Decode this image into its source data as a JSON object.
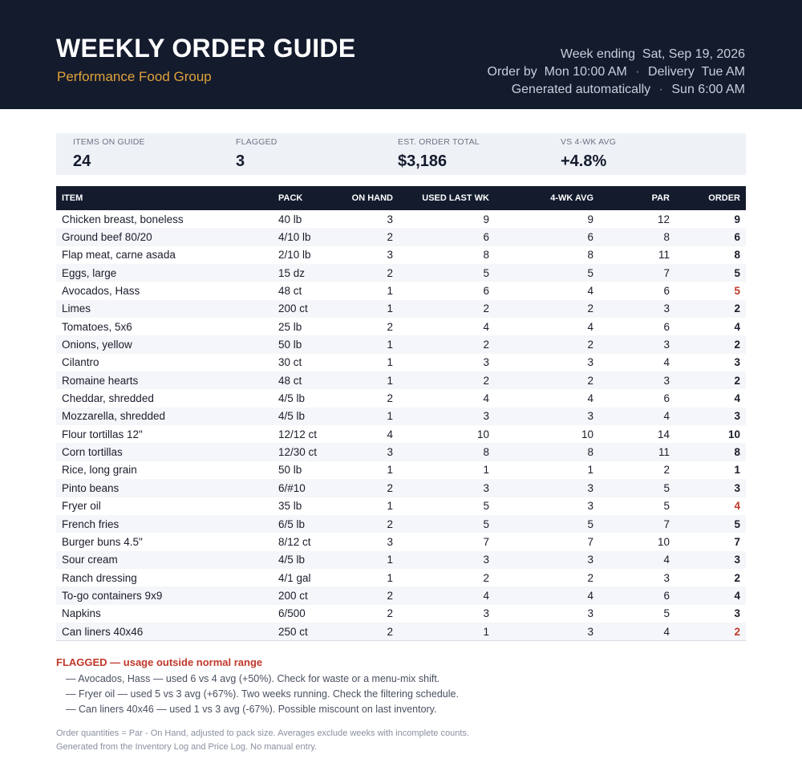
{
  "header": {
    "title": "WEEKLY ORDER GUIDE",
    "vendor": "Performance Food Group",
    "week_ending_label": "Week ending",
    "week_ending": "Sat, Sep 19, 2026",
    "order_by_label": "Order by",
    "order_by": "Mon 10:00 AM",
    "delivery_label": "Delivery",
    "delivery": "Tue AM",
    "generated_label": "Generated automatically",
    "generated": "Sun 6:00 AM"
  },
  "stats": [
    {
      "label": "ITEMS ON GUIDE",
      "value": "24"
    },
    {
      "label": "FLAGGED",
      "value": "3"
    },
    {
      "label": "EST. ORDER TOTAL",
      "value": "$3,186"
    },
    {
      "label": "VS 4-WK AVG",
      "value": "+4.8%"
    }
  ],
  "table": {
    "columns": [
      "ITEM",
      "PACK",
      "ON HAND",
      "USED LAST WK",
      "4-WK AVG",
      "PAR",
      "ORDER"
    ],
    "rows": [
      {
        "item": "Chicken breast, boneless",
        "pack": "40 lb",
        "on_hand": "3",
        "used": "9",
        "avg": "9",
        "par": "12",
        "order": "9",
        "flag": false
      },
      {
        "item": "Ground beef 80/20",
        "pack": "4/10 lb",
        "on_hand": "2",
        "used": "6",
        "avg": "6",
        "par": "8",
        "order": "6",
        "flag": false
      },
      {
        "item": "Flap meat, carne asada",
        "pack": "2/10 lb",
        "on_hand": "3",
        "used": "8",
        "avg": "8",
        "par": "11",
        "order": "8",
        "flag": false
      },
      {
        "item": "Eggs, large",
        "pack": "15 dz",
        "on_hand": "2",
        "used": "5",
        "avg": "5",
        "par": "7",
        "order": "5",
        "flag": false
      },
      {
        "item": "Avocados, Hass",
        "pack": "48 ct",
        "on_hand": "1",
        "used": "6",
        "avg": "4",
        "par": "6",
        "order": "5",
        "flag": true
      },
      {
        "item": "Limes",
        "pack": "200 ct",
        "on_hand": "1",
        "used": "2",
        "avg": "2",
        "par": "3",
        "order": "2",
        "flag": false
      },
      {
        "item": "Tomatoes, 5x6",
        "pack": "25 lb",
        "on_hand": "2",
        "used": "4",
        "avg": "4",
        "par": "6",
        "order": "4",
        "flag": false
      },
      {
        "item": "Onions, yellow",
        "pack": "50 lb",
        "on_hand": "1",
        "used": "2",
        "avg": "2",
        "par": "3",
        "order": "2",
        "flag": false
      },
      {
        "item": "Cilantro",
        "pack": "30 ct",
        "on_hand": "1",
        "used": "3",
        "avg": "3",
        "par": "4",
        "order": "3",
        "flag": false
      },
      {
        "item": "Romaine hearts",
        "pack": "48 ct",
        "on_hand": "1",
        "used": "2",
        "avg": "2",
        "par": "3",
        "order": "2",
        "flag": false
      },
      {
        "item": "Cheddar, shredded",
        "pack": "4/5 lb",
        "on_hand": "2",
        "used": "4",
        "avg": "4",
        "par": "6",
        "order": "4",
        "flag": false
      },
      {
        "item": "Mozzarella, shredded",
        "pack": "4/5 lb",
        "on_hand": "1",
        "used": "3",
        "avg": "3",
        "par": "4",
        "order": "3",
        "flag": false
      },
      {
        "item": "Flour tortillas 12\"",
        "pack": "12/12 ct",
        "on_hand": "4",
        "used": "10",
        "avg": "10",
        "par": "14",
        "order": "10",
        "flag": false
      },
      {
        "item": "Corn tortillas",
        "pack": "12/30 ct",
        "on_hand": "3",
        "used": "8",
        "avg": "8",
        "par": "11",
        "order": "8",
        "flag": false
      },
      {
        "item": "Rice, long grain",
        "pack": "50 lb",
        "on_hand": "1",
        "used": "1",
        "avg": "1",
        "par": "2",
        "order": "1",
        "flag": false
      },
      {
        "item": "Pinto beans",
        "pack": "6/#10",
        "on_hand": "2",
        "used": "3",
        "avg": "3",
        "par": "5",
        "order": "3",
        "flag": false
      },
      {
        "item": "Fryer oil",
        "pack": "35 lb",
        "on_hand": "1",
        "used": "5",
        "avg": "3",
        "par": "5",
        "order": "4",
        "flag": true
      },
      {
        "item": "French fries",
        "pack": "6/5 lb",
        "on_hand": "2",
        "used": "5",
        "avg": "5",
        "par": "7",
        "order": "5",
        "flag": false
      },
      {
        "item": "Burger buns 4.5\"",
        "pack": "8/12 ct",
        "on_hand": "3",
        "used": "7",
        "avg": "7",
        "par": "10",
        "order": "7",
        "flag": false
      },
      {
        "item": "Sour cream",
        "pack": "4/5 lb",
        "on_hand": "1",
        "used": "3",
        "avg": "3",
        "par": "4",
        "order": "3",
        "flag": false
      },
      {
        "item": "Ranch dressing",
        "pack": "4/1 gal",
        "on_hand": "1",
        "used": "2",
        "avg": "2",
        "par": "3",
        "order": "2",
        "flag": false
      },
      {
        "item": "To-go containers 9x9",
        "pack": "200 ct",
        "on_hand": "2",
        "used": "4",
        "avg": "4",
        "par": "6",
        "order": "4",
        "flag": false
      },
      {
        "item": "Napkins",
        "pack": "6/500",
        "on_hand": "2",
        "used": "3",
        "avg": "3",
        "par": "5",
        "order": "3",
        "flag": false
      },
      {
        "item": "Can liners 40x46",
        "pack": "250 ct",
        "on_hand": "2",
        "used": "1",
        "avg": "3",
        "par": "4",
        "order": "2",
        "flag": true
      }
    ]
  },
  "flagged": {
    "title": "FLAGGED — usage outside normal range",
    "notes": [
      "— Avocados, Hass — used 6 vs 4 avg (+50%). Check for waste or a menu-mix shift.",
      "— Fryer oil — used 5 vs 3 avg (+67%). Two weeks running. Check the filtering schedule.",
      "— Can liners 40x46 — used 1 vs 3 avg (-67%). Possible miscount on last inventory."
    ]
  },
  "footer": [
    "Order quantities = Par - On Hand, adjusted to pack size. Averages exclude weeks with incomplete counts.",
    "Generated from the Inventory Log and Price Log. No manual entry."
  ],
  "colors": {
    "header_bg": "#141b2d",
    "accent": "#e0a23a",
    "flag": "#c0392b"
  }
}
